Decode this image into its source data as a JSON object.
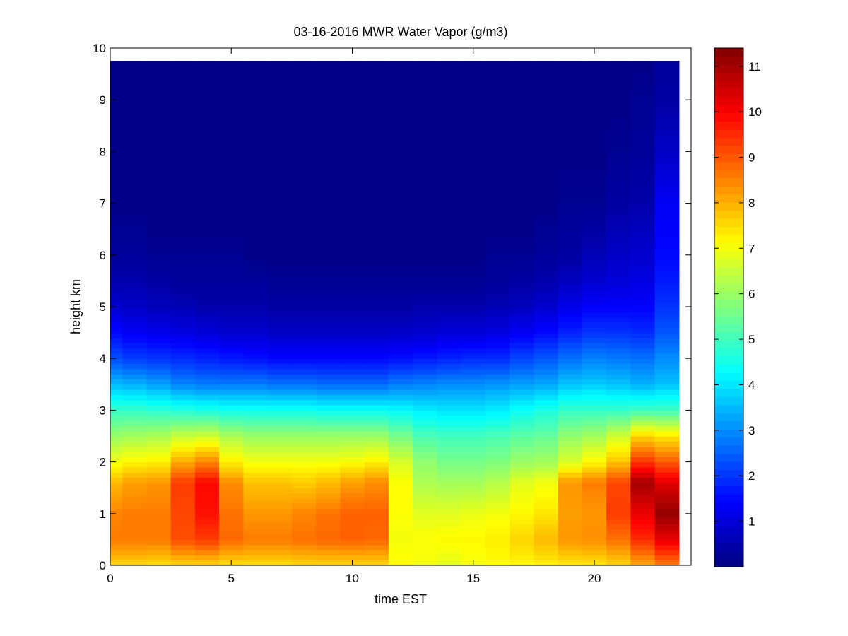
{
  "chart_data": {
    "type": "heatmap",
    "title": "03-16-2016 MWR Water Vapor (g/m3)",
    "xlabel": "time EST",
    "ylabel": "height km",
    "xlim": [
      0,
      24
    ],
    "ylim": [
      0,
      10
    ],
    "x_ticks": [
      "0",
      "5",
      "10",
      "15",
      "20"
    ],
    "y_ticks": [
      "0",
      "1",
      "2",
      "3",
      "4",
      "5",
      "6",
      "7",
      "8",
      "9",
      "10"
    ],
    "colormap": "jet",
    "clim": [
      0,
      11.4
    ],
    "colorbar_ticks": [
      "1",
      "2",
      "3",
      "4",
      "5",
      "6",
      "7",
      "8",
      "9",
      "10",
      "11"
    ],
    "data_extent": {
      "time_start": 0,
      "time_end": 23.5,
      "height_top": 9.75
    },
    "time_hours": [
      0,
      1,
      2,
      3,
      4,
      5,
      6,
      7,
      8,
      9,
      10,
      11,
      12,
      13,
      14,
      15,
      16,
      17,
      18,
      19,
      20,
      21,
      22,
      23
    ],
    "profile_heights_km": [
      0,
      0.5,
      1.0,
      1.6,
      2.0,
      2.5,
      3.0,
      3.5,
      4.0,
      4.5,
      5.0,
      5.5,
      6.0,
      6.5,
      7.0,
      8.0,
      9.0,
      9.75
    ],
    "vapor_profiles_g_m3": [
      [
        7.6,
        8.6,
        8.5,
        7.9,
        7.0,
        6.0,
        4.9,
        3.5,
        2.3,
        1.5,
        0.9,
        0.5,
        0.3,
        0.2,
        0.1,
        0.1,
        0.1,
        0.1
      ],
      [
        7.6,
        8.6,
        8.6,
        8.2,
        7.2,
        6.1,
        4.9,
        3.4,
        2.1,
        1.3,
        0.8,
        0.5,
        0.3,
        0.2,
        0.1,
        0.1,
        0.1,
        0.1
      ],
      [
        7.5,
        8.6,
        8.6,
        8.3,
        7.3,
        6.2,
        4.8,
        3.2,
        2.0,
        1.2,
        0.7,
        0.4,
        0.2,
        0.1,
        0.1,
        0.1,
        0.1,
        0.1
      ],
      [
        7.6,
        9.1,
        9.2,
        9.3,
        8.1,
        6.5,
        4.7,
        2.9,
        1.9,
        1.1,
        0.6,
        0.3,
        0.2,
        0.1,
        0.1,
        0.1,
        0.1,
        0.1
      ],
      [
        7.6,
        9.3,
        9.8,
        9.9,
        8.5,
        6.6,
        4.6,
        2.8,
        1.8,
        1.0,
        0.5,
        0.3,
        0.2,
        0.1,
        0.1,
        0.1,
        0.1,
        0.1
      ],
      [
        7.5,
        8.8,
        8.7,
        8.4,
        7.3,
        6.2,
        4.5,
        2.8,
        1.7,
        0.9,
        0.5,
        0.3,
        0.2,
        0.1,
        0.1,
        0.1,
        0.1,
        0.1
      ],
      [
        7.5,
        8.6,
        8.3,
        7.8,
        7.0,
        6.0,
        4.5,
        2.8,
        1.6,
        0.9,
        0.5,
        0.3,
        0.1,
        0.1,
        0.1,
        0.1,
        0.1,
        0.1
      ],
      [
        7.5,
        8.6,
        8.3,
        7.8,
        7.0,
        6.0,
        4.5,
        2.7,
        1.5,
        0.8,
        0.4,
        0.2,
        0.1,
        0.1,
        0.1,
        0.1,
        0.1,
        0.1
      ],
      [
        7.6,
        8.7,
        8.5,
        7.7,
        7.0,
        6.0,
        4.5,
        2.7,
        1.5,
        0.8,
        0.4,
        0.2,
        0.1,
        0.1,
        0.1,
        0.1,
        0.1,
        0.1
      ],
      [
        7.6,
        8.8,
        8.7,
        7.9,
        7.0,
        6.0,
        4.4,
        2.6,
        1.5,
        0.8,
        0.4,
        0.2,
        0.1,
        0.1,
        0.1,
        0.1,
        0.1,
        0.1
      ],
      [
        7.6,
        8.9,
        8.9,
        8.2,
        7.1,
        6.0,
        4.4,
        2.6,
        1.5,
        0.8,
        0.4,
        0.2,
        0.1,
        0.1,
        0.1,
        0.1,
        0.1,
        0.1
      ],
      [
        7.6,
        8.8,
        8.9,
        8.4,
        7.3,
        6.0,
        4.4,
        2.6,
        1.5,
        0.8,
        0.4,
        0.2,
        0.1,
        0.1,
        0.1,
        0.1,
        0.1,
        0.1
      ],
      [
        7.2,
        7.0,
        7.1,
        7.1,
        6.7,
        5.6,
        4.3,
        2.8,
        1.6,
        0.8,
        0.4,
        0.2,
        0.1,
        0.1,
        0.1,
        0.1,
        0.1,
        0.1
      ],
      [
        7.0,
        7.1,
        6.8,
        6.2,
        5.9,
        5.1,
        4.1,
        2.9,
        1.7,
        0.9,
        0.5,
        0.2,
        0.1,
        0.1,
        0.1,
        0.1,
        0.1,
        0.1
      ],
      [
        6.8,
        7.2,
        6.8,
        6.1,
        5.6,
        5.0,
        4.0,
        3.0,
        1.8,
        1.0,
        0.5,
        0.2,
        0.1,
        0.1,
        0.1,
        0.1,
        0.1,
        0.1
      ],
      [
        7.0,
        7.2,
        6.9,
        6.1,
        5.6,
        5.0,
        4.0,
        3.0,
        1.9,
        1.0,
        0.5,
        0.2,
        0.1,
        0.1,
        0.1,
        0.1,
        0.1,
        0.1
      ],
      [
        7.1,
        7.3,
        7.0,
        6.3,
        5.7,
        5.1,
        4.1,
        3.1,
        1.9,
        1.1,
        0.6,
        0.3,
        0.2,
        0.1,
        0.1,
        0.1,
        0.1,
        0.1
      ],
      [
        7.2,
        7.6,
        7.2,
        6.8,
        6.0,
        5.3,
        4.4,
        3.2,
        2.2,
        1.3,
        0.7,
        0.4,
        0.2,
        0.1,
        0.1,
        0.1,
        0.1,
        0.1
      ],
      [
        7.3,
        7.9,
        7.4,
        7.0,
        6.1,
        5.4,
        4.6,
        3.3,
        2.4,
        1.5,
        0.9,
        0.5,
        0.3,
        0.2,
        0.1,
        0.1,
        0.1,
        0.1
      ],
      [
        7.4,
        8.3,
        8.2,
        8.3,
        6.7,
        5.9,
        4.9,
        3.6,
        2.7,
        1.8,
        1.2,
        0.7,
        0.4,
        0.3,
        0.2,
        0.1,
        0.1,
        0.1
      ],
      [
        7.4,
        8.4,
        8.3,
        8.6,
        7.2,
        6.1,
        4.9,
        3.7,
        2.9,
        2.0,
        1.4,
        0.9,
        0.6,
        0.4,
        0.2,
        0.1,
        0.1,
        0.1
      ],
      [
        7.6,
        8.7,
        9.3,
        9.2,
        7.8,
        6.6,
        4.9,
        3.6,
        2.8,
        2.0,
        1.4,
        1.0,
        0.8,
        0.6,
        0.4,
        0.2,
        0.1,
        0.1
      ],
      [
        8.1,
        9.5,
        10.2,
        11.0,
        9.4,
        7.6,
        5.0,
        3.4,
        2.7,
        1.9,
        1.4,
        1.1,
        0.9,
        0.7,
        0.5,
        0.3,
        0.2,
        0.1
      ],
      [
        8.6,
        10.2,
        11.2,
        10.3,
        9.0,
        7.4,
        5.0,
        3.6,
        3.0,
        2.4,
        2.0,
        1.7,
        1.5,
        1.4,
        1.3,
        0.8,
        0.4,
        0.3
      ]
    ]
  }
}
